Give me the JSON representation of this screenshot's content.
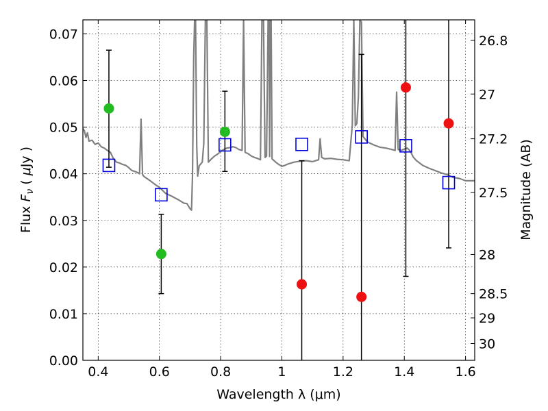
{
  "chart_data": {
    "type": "scatter",
    "xlabel": "Wavelength  λ (μm)",
    "ylabel": "Flux  F_ν  ( μJy )",
    "ylabel_right": "Magnitude (AB)",
    "xlim": [
      0.35,
      1.63
    ],
    "ylim": [
      0.0,
      0.073
    ],
    "x_ticks": [
      0.4,
      0.6,
      0.8,
      1.0,
      1.2,
      1.4,
      1.6
    ],
    "x_tick_labels": [
      "0.4",
      "0.6",
      "0.8",
      "1",
      "1.2",
      "1.4",
      "1.6"
    ],
    "y_ticks": [
      0.0,
      0.01,
      0.02,
      0.03,
      0.04,
      0.05,
      0.06,
      0.07
    ],
    "y_tick_labels": [
      "0.00",
      "0.01",
      "0.02",
      "0.03",
      "0.04",
      "0.05",
      "0.06",
      "0.07"
    ],
    "right_ticks": [
      {
        "label": "26.8",
        "flux": 0.0686
      },
      {
        "label": "27",
        "flux": 0.0571
      },
      {
        "label": "27.2",
        "flux": 0.0475
      },
      {
        "label": "27.5",
        "flux": 0.036
      },
      {
        "label": "28",
        "flux": 0.0227
      },
      {
        "label": "28.5",
        "flux": 0.0143
      },
      {
        "label": "29",
        "flux": 0.0091
      },
      {
        "label": "30",
        "flux": 0.0036
      }
    ],
    "grid": true,
    "grid_style": "dotted",
    "series": [
      {
        "kind": "detected",
        "color": "#22bb22",
        "points": [
          {
            "x": 0.435,
            "y": 0.054
          },
          {
            "x": 0.606,
            "y": 0.0228
          },
          {
            "x": 0.814,
            "y": 0.049
          }
        ]
      },
      {
        "kind": "non-detected",
        "color": "#ee1111",
        "points": [
          {
            "x": 1.065,
            "y": 0.0163
          },
          {
            "x": 1.26,
            "y": 0.0136
          },
          {
            "x": 1.405,
            "y": 0.0585
          },
          {
            "x": 1.545,
            "y": 0.0508
          }
        ]
      },
      {
        "kind": "model",
        "color": "#0000dd",
        "points": [
          {
            "x": 0.435,
            "y": 0.0418
          },
          {
            "x": 0.606,
            "y": 0.0355
          },
          {
            "x": 0.814,
            "y": 0.0462
          },
          {
            "x": 1.065,
            "y": 0.0463
          },
          {
            "x": 1.26,
            "y": 0.0479
          },
          {
            "x": 1.405,
            "y": 0.046
          },
          {
            "x": 1.545,
            "y": 0.0381
          }
        ]
      }
    ],
    "error_bars": [
      {
        "x": 0.435,
        "low": 0.0414,
        "high": 0.0665,
        "cap_low": true,
        "cap_high": true
      },
      {
        "x": 0.606,
        "low": 0.0143,
        "high": 0.0313,
        "cap_low": true,
        "cap_high": true
      },
      {
        "x": 0.814,
        "low": 0.0405,
        "high": 0.0577,
        "cap_low": true,
        "cap_high": true
      },
      {
        "x": 1.065,
        "low": 0.0,
        "high": 0.0428,
        "cap_low": false,
        "cap_high": true
      },
      {
        "x": 1.26,
        "low": 0.0,
        "high": 0.0656,
        "cap_low": false,
        "cap_high": true
      },
      {
        "x": 1.405,
        "low": 0.018,
        "high": 0.073,
        "cap_low": true,
        "cap_high": false
      },
      {
        "x": 1.545,
        "low": 0.0241,
        "high": 0.073,
        "cap_low": true,
        "cap_high": false
      }
    ],
    "spectrum": {
      "color": "#808080",
      "points": [
        [
          0.35,
          0.0497
        ],
        [
          0.355,
          0.0492
        ],
        [
          0.36,
          0.0478
        ],
        [
          0.365,
          0.0488
        ],
        [
          0.37,
          0.047
        ],
        [
          0.38,
          0.0472
        ],
        [
          0.39,
          0.0463
        ],
        [
          0.4,
          0.0466
        ],
        [
          0.41,
          0.0458
        ],
        [
          0.42,
          0.0455
        ],
        [
          0.43,
          0.045
        ],
        [
          0.44,
          0.0446
        ],
        [
          0.45,
          0.0432
        ],
        [
          0.46,
          0.0425
        ],
        [
          0.47,
          0.0423
        ],
        [
          0.48,
          0.042
        ],
        [
          0.49,
          0.0418
        ],
        [
          0.5,
          0.0413
        ],
        [
          0.51,
          0.0407
        ],
        [
          0.52,
          0.0405
        ],
        [
          0.53,
          0.0402
        ],
        [
          0.535,
          0.04
        ],
        [
          0.54,
          0.0517
        ],
        [
          0.545,
          0.0398
        ],
        [
          0.55,
          0.0394
        ],
        [
          0.57,
          0.0385
        ],
        [
          0.59,
          0.0375
        ],
        [
          0.6,
          0.0371
        ],
        [
          0.62,
          0.0358
        ],
        [
          0.64,
          0.0352
        ],
        [
          0.66,
          0.0345
        ],
        [
          0.68,
          0.0337
        ],
        [
          0.69,
          0.0336
        ],
        [
          0.7,
          0.0325
        ],
        [
          0.705,
          0.0322
        ],
        [
          0.708,
          0.0395
        ],
        [
          0.712,
          0.065
        ],
        [
          0.715,
          0.073
        ],
        [
          0.718,
          0.073
        ],
        [
          0.722,
          0.046
        ],
        [
          0.725,
          0.0395
        ],
        [
          0.73,
          0.0417
        ],
        [
          0.74,
          0.0425
        ],
        [
          0.745,
          0.0465
        ],
        [
          0.75,
          0.073
        ],
        [
          0.755,
          0.073
        ],
        [
          0.76,
          0.0425
        ],
        [
          0.77,
          0.0432
        ],
        [
          0.78,
          0.0438
        ],
        [
          0.79,
          0.0442
        ],
        [
          0.8,
          0.0448
        ],
        [
          0.81,
          0.0452
        ],
        [
          0.82,
          0.0455
        ],
        [
          0.83,
          0.0456
        ],
        [
          0.84,
          0.0458
        ],
        [
          0.85,
          0.0456
        ],
        [
          0.86,
          0.0452
        ],
        [
          0.87,
          0.045
        ],
        [
          0.875,
          0.073
        ],
        [
          0.88,
          0.0446
        ],
        [
          0.89,
          0.0443
        ],
        [
          0.9,
          0.0438
        ],
        [
          0.91,
          0.0435
        ],
        [
          0.92,
          0.0433
        ],
        [
          0.93,
          0.043
        ],
        [
          0.935,
          0.073
        ],
        [
          0.94,
          0.073
        ],
        [
          0.945,
          0.0435
        ],
        [
          0.95,
          0.0438
        ],
        [
          0.955,
          0.073
        ],
        [
          0.958,
          0.073
        ],
        [
          0.96,
          0.0437
        ],
        [
          0.962,
          0.073
        ],
        [
          0.965,
          0.073
        ],
        [
          0.968,
          0.0432
        ],
        [
          0.98,
          0.0425
        ],
        [
          0.99,
          0.042
        ],
        [
          1.0,
          0.0416
        ],
        [
          1.01,
          0.0418
        ],
        [
          1.02,
          0.0421
        ],
        [
          1.04,
          0.0425
        ],
        [
          1.06,
          0.0427
        ],
        [
          1.08,
          0.0428
        ],
        [
          1.1,
          0.0426
        ],
        [
          1.12,
          0.043
        ],
        [
          1.125,
          0.0475
        ],
        [
          1.13,
          0.0435
        ],
        [
          1.14,
          0.0432
        ],
        [
          1.16,
          0.0433
        ],
        [
          1.18,
          0.0431
        ],
        [
          1.2,
          0.043
        ],
        [
          1.22,
          0.0428
        ],
        [
          1.23,
          0.0505
        ],
        [
          1.235,
          0.073
        ],
        [
          1.24,
          0.0503
        ],
        [
          1.245,
          0.0508
        ],
        [
          1.25,
          0.0565
        ],
        [
          1.255,
          0.073
        ],
        [
          1.26,
          0.0725
        ],
        [
          1.265,
          0.048
        ],
        [
          1.28,
          0.0468
        ],
        [
          1.3,
          0.0462
        ],
        [
          1.32,
          0.0457
        ],
        [
          1.34,
          0.0455
        ],
        [
          1.36,
          0.0452
        ],
        [
          1.37,
          0.045
        ],
        [
          1.375,
          0.0575
        ],
        [
          1.38,
          0.0452
        ],
        [
          1.39,
          0.045
        ],
        [
          1.4,
          0.0453
        ],
        [
          1.41,
          0.0455
        ],
        [
          1.42,
          0.0448
        ],
        [
          1.43,
          0.0435
        ],
        [
          1.44,
          0.0428
        ],
        [
          1.46,
          0.0418
        ],
        [
          1.48,
          0.0412
        ],
        [
          1.5,
          0.0407
        ],
        [
          1.52,
          0.0402
        ],
        [
          1.54,
          0.0398
        ],
        [
          1.56,
          0.0392
        ],
        [
          1.58,
          0.039
        ],
        [
          1.6,
          0.0385
        ],
        [
          1.62,
          0.0385
        ],
        [
          1.63,
          0.0385
        ]
      ]
    }
  }
}
